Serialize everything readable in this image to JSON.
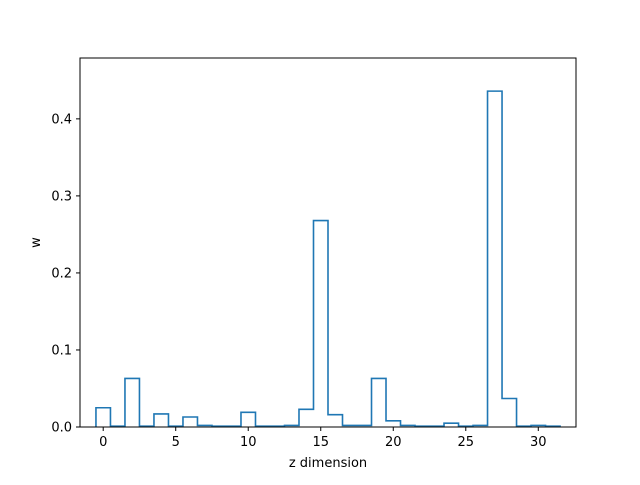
{
  "chart_data": {
    "type": "histogram-step",
    "title": "",
    "xlabel": "z dimension",
    "ylabel": "w",
    "xlim": [
      -1.6,
      32.6
    ],
    "ylim": [
      0,
      0.479
    ],
    "x_ticks": [
      0,
      5,
      10,
      15,
      20,
      25,
      30
    ],
    "y_ticks": [
      0.0,
      0.1,
      0.2,
      0.3,
      0.4
    ],
    "y_tick_labels": [
      "0.0",
      "0.1",
      "0.2",
      "0.3",
      "0.4"
    ],
    "grid": false,
    "bins": [
      0,
      1,
      2,
      3,
      4,
      5,
      6,
      7,
      8,
      9,
      10,
      11,
      12,
      13,
      14,
      15,
      16,
      17,
      18,
      19,
      20,
      21,
      22,
      23,
      24,
      25,
      26,
      27,
      28,
      29,
      30,
      31
    ],
    "values": [
      0.025,
      0.001,
      0.063,
      0.001,
      0.017,
      0.001,
      0.013,
      0.002,
      0.001,
      0.001,
      0.019,
      0.001,
      0.001,
      0.002,
      0.023,
      0.268,
      0.016,
      0.002,
      0.002,
      0.063,
      0.008,
      0.002,
      0.001,
      0.001,
      0.005,
      0.001,
      0.002,
      0.436,
      0.037,
      0.001,
      0.002,
      0.001
    ],
    "line_color": "#1f77b4"
  }
}
